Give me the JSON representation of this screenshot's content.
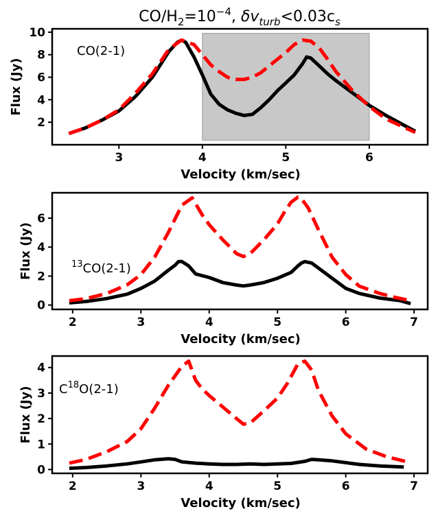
{
  "figure_title": {
    "prefix": "CO/H",
    "sub1": "2",
    "mid": "=10",
    "sup1": "−4",
    "sep": ", ",
    "delta": "δv",
    "sub2": "turb",
    "lt": "<0.03c",
    "sub3": "s"
  },
  "colors": {
    "black_series": "#000000",
    "red_series": "#ff0000",
    "shade": "#c8c8c8"
  },
  "chart_data": [
    {
      "type": "line",
      "panel": "CO(2-1)",
      "annotation": {
        "main": "CO(2-1)"
      },
      "xlabel": "Velocity (km/sec)",
      "ylabel": "Flux (Jy)",
      "xlim": [
        2.2,
        6.7
      ],
      "ylim": [
        0.0,
        10.3
      ],
      "xticks": [
        3,
        4,
        5,
        6
      ],
      "yticks": [
        2,
        4,
        6,
        8,
        10
      ],
      "shaded_region": {
        "x": [
          4.0,
          6.0
        ],
        "y": [
          0.4,
          9.9
        ]
      },
      "series": [
        {
          "name": "black-solid",
          "style": "solid",
          "x": [
            2.4,
            2.6,
            2.8,
            3.0,
            3.2,
            3.4,
            3.6,
            3.7,
            3.75,
            3.8,
            3.9,
            4.0,
            4.1,
            4.2,
            4.3,
            4.4,
            4.5,
            4.6,
            4.7,
            4.8,
            4.9,
            5.0,
            5.1,
            5.15,
            5.2,
            5.25,
            5.3,
            5.4,
            5.5,
            5.6,
            5.8,
            6.0,
            6.2,
            6.4,
            6.55
          ],
          "y": [
            1.0,
            1.5,
            2.2,
            3.0,
            4.3,
            6.0,
            8.3,
            9.1,
            9.3,
            9.1,
            7.8,
            6.2,
            4.5,
            3.6,
            3.1,
            2.8,
            2.6,
            2.7,
            3.3,
            4.0,
            4.8,
            5.5,
            6.2,
            6.7,
            7.2,
            7.8,
            7.7,
            7.0,
            6.3,
            5.7,
            4.6,
            3.5,
            2.6,
            1.8,
            1.2
          ]
        },
        {
          "name": "red-dashed",
          "style": "dashed",
          "x": [
            2.4,
            2.6,
            2.8,
            3.0,
            3.2,
            3.4,
            3.6,
            3.75,
            3.9,
            4.0,
            4.1,
            4.2,
            4.3,
            4.4,
            4.5,
            4.6,
            4.7,
            4.8,
            4.9,
            5.0,
            5.1,
            5.2,
            5.3,
            5.4,
            5.5,
            5.6,
            5.8,
            6.0,
            6.2,
            6.4,
            6.55
          ],
          "y": [
            1.0,
            1.5,
            2.2,
            3.1,
            4.6,
            6.3,
            8.5,
            9.3,
            8.9,
            8.0,
            7.1,
            6.5,
            6.0,
            5.8,
            5.8,
            6.0,
            6.4,
            7.0,
            7.6,
            8.2,
            8.9,
            9.3,
            9.2,
            8.6,
            7.6,
            6.5,
            4.8,
            3.4,
            2.3,
            1.6,
            1.1
          ]
        }
      ]
    },
    {
      "type": "line",
      "panel": "13CO(2-1)",
      "annotation": {
        "sup": "13",
        "main": "CO(2-1)"
      },
      "xlabel": "Velocity (km/sec)",
      "ylabel": "Flux (Jy)",
      "xlim": [
        1.7,
        7.2
      ],
      "ylim": [
        -0.3,
        7.75
      ],
      "xticks": [
        2,
        3,
        4,
        5,
        6,
        7
      ],
      "yticks": [
        0,
        2,
        4,
        6
      ],
      "series": [
        {
          "name": "black-solid",
          "style": "solid",
          "x": [
            1.95,
            2.2,
            2.5,
            2.8,
            3.0,
            3.2,
            3.4,
            3.5,
            3.55,
            3.6,
            3.7,
            3.8,
            4.0,
            4.2,
            4.4,
            4.5,
            4.6,
            4.8,
            5.0,
            5.2,
            5.3,
            5.35,
            5.4,
            5.5,
            5.6,
            5.8,
            6.0,
            6.2,
            6.5,
            6.8,
            6.95
          ],
          "y": [
            0.15,
            0.25,
            0.45,
            0.75,
            1.15,
            1.65,
            2.4,
            2.75,
            3.0,
            3.0,
            2.7,
            2.15,
            1.9,
            1.55,
            1.38,
            1.32,
            1.38,
            1.55,
            1.85,
            2.25,
            2.7,
            2.9,
            3.0,
            2.9,
            2.55,
            1.85,
            1.15,
            0.8,
            0.48,
            0.3,
            0.1
          ]
        },
        {
          "name": "red-dashed",
          "style": "dashed",
          "x": [
            1.95,
            2.2,
            2.5,
            2.8,
            3.0,
            3.2,
            3.4,
            3.6,
            3.75,
            3.9,
            4.0,
            4.2,
            4.4,
            4.5,
            4.6,
            4.8,
            5.0,
            5.1,
            5.2,
            5.3,
            5.35,
            5.45,
            5.6,
            5.8,
            6.0,
            6.2,
            6.5,
            6.7,
            6.9
          ],
          "y": [
            0.3,
            0.45,
            0.8,
            1.4,
            2.1,
            3.3,
            5.0,
            6.9,
            7.4,
            6.2,
            5.55,
            4.5,
            3.55,
            3.35,
            3.55,
            4.5,
            5.6,
            6.4,
            7.1,
            7.45,
            7.35,
            6.7,
            5.2,
            3.3,
            2.1,
            1.3,
            0.8,
            0.55,
            0.35
          ]
        }
      ]
    },
    {
      "type": "line",
      "panel": "C18O(2-1)",
      "annotation": {
        "pre": "C",
        "sup": "18",
        "main": "O(2-1)"
      },
      "xlabel": "Velocity (km/sec)",
      "ylabel": "Flux (Jy)",
      "xlim": [
        1.7,
        7.2
      ],
      "ylim": [
        -0.15,
        4.45
      ],
      "xticks": [
        2,
        3,
        4,
        5,
        6,
        7
      ],
      "yticks": [
        0,
        1,
        2,
        3,
        4
      ],
      "series": [
        {
          "name": "black-solid",
          "style": "solid",
          "x": [
            1.95,
            2.2,
            2.5,
            2.8,
            3.0,
            3.2,
            3.4,
            3.5,
            3.6,
            3.8,
            4.0,
            4.2,
            4.4,
            4.6,
            4.8,
            5.0,
            5.2,
            5.4,
            5.5,
            5.6,
            5.8,
            6.0,
            6.2,
            6.5,
            6.85
          ],
          "y": [
            0.05,
            0.08,
            0.14,
            0.22,
            0.3,
            0.38,
            0.42,
            0.4,
            0.3,
            0.25,
            0.22,
            0.2,
            0.2,
            0.22,
            0.2,
            0.22,
            0.24,
            0.32,
            0.4,
            0.38,
            0.34,
            0.27,
            0.2,
            0.14,
            0.1
          ]
        },
        {
          "name": "red-dashed",
          "style": "dashed",
          "x": [
            1.95,
            2.2,
            2.5,
            2.8,
            3.0,
            3.2,
            3.4,
            3.6,
            3.7,
            3.8,
            3.9,
            4.0,
            4.2,
            4.4,
            4.5,
            4.6,
            4.8,
            5.0,
            5.15,
            5.3,
            5.4,
            5.5,
            5.6,
            5.8,
            6.0,
            6.3,
            6.6,
            6.9
          ],
          "y": [
            0.25,
            0.4,
            0.7,
            1.1,
            1.6,
            2.4,
            3.3,
            4.05,
            4.25,
            3.5,
            3.15,
            2.9,
            2.45,
            2.0,
            1.78,
            1.82,
            2.3,
            2.8,
            3.4,
            4.15,
            4.25,
            3.9,
            3.1,
            2.1,
            1.4,
            0.8,
            0.5,
            0.3
          ]
        }
      ]
    }
  ]
}
